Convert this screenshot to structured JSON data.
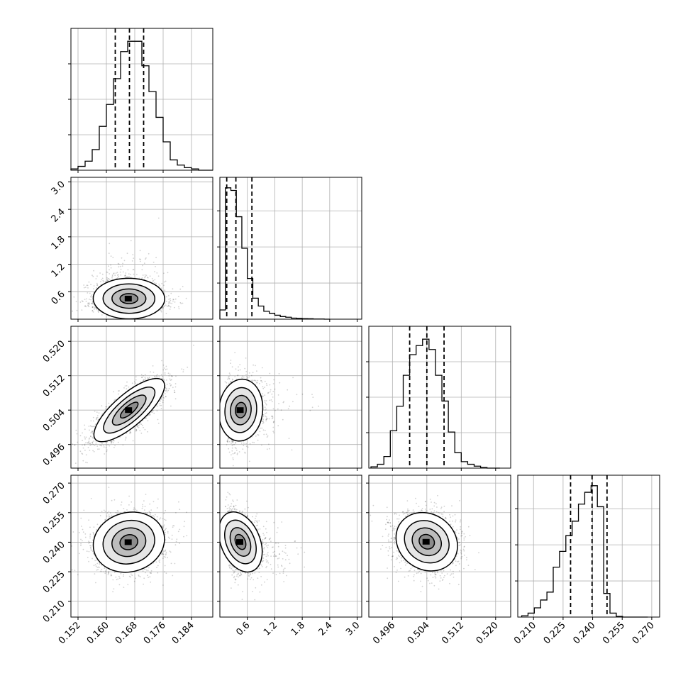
{
  "chart_data": {
    "type": "corner",
    "parameters": [
      {
        "range": [
          0.15,
          0.19
        ],
        "ticks": [
          0.152,
          0.16,
          0.168,
          0.176,
          0.184
        ],
        "tick_labels": [
          "0.152",
          "0.160",
          "0.168",
          "0.176",
          "0.184"
        ],
        "quantiles": [
          0.1625,
          0.1665,
          0.1705
        ],
        "hist_bins": [
          0.15,
          0.152,
          0.154,
          0.156,
          0.158,
          0.16,
          0.162,
          0.164,
          0.166,
          0.168,
          0.17,
          0.172,
          0.174,
          0.176,
          0.178,
          0.18,
          0.182,
          0.184,
          0.186,
          0.188,
          0.19
        ],
        "hist_counts": [
          0.01,
          0.03,
          0.07,
          0.16,
          0.34,
          0.51,
          0.71,
          0.92,
          1.0,
          1.0,
          0.81,
          0.61,
          0.41,
          0.22,
          0.08,
          0.04,
          0.02,
          0.01,
          0,
          0
        ],
        "hist_ylim": [
          0,
          1.1
        ]
      },
      {
        "range": [
          0.0,
          3.1
        ],
        "ticks": [
          0.6,
          1.2,
          1.8,
          2.4,
          3.0
        ],
        "tick_labels": [
          "0.6",
          "1.2",
          "1.8",
          "2.4",
          "3.0"
        ],
        "quantiles": [
          0.15,
          0.35,
          0.7
        ],
        "hist_bins": [
          0.0,
          0.12,
          0.24,
          0.36,
          0.48,
          0.6,
          0.72,
          0.84,
          0.96,
          1.08,
          1.2,
          1.32,
          1.44,
          1.56,
          1.68,
          1.8,
          1.92,
          2.04,
          2.16,
          2.28,
          2.4
        ],
        "hist_counts": [
          0.07,
          1.0,
          0.98,
          0.78,
          0.54,
          0.31,
          0.16,
          0.1,
          0.06,
          0.045,
          0.03,
          0.02,
          0.015,
          0.008,
          0.006,
          0.004,
          0.003,
          0.001,
          0.001,
          0
        ],
        "hist_ylim": [
          0,
          1.08
        ]
      },
      {
        "range": [
          0.4905,
          0.5235
        ],
        "ticks": [
          0.496,
          0.504,
          0.512,
          0.52
        ],
        "tick_labels": [
          "0.496",
          "0.504",
          "0.512",
          "0.520"
        ],
        "quantiles": [
          0.5,
          0.504,
          0.508
        ],
        "hist_bins": [
          0.491,
          0.4925,
          0.494,
          0.4955,
          0.497,
          0.4985,
          0.5,
          0.5015,
          0.503,
          0.5045,
          0.506,
          0.5075,
          0.509,
          0.5105,
          0.512,
          0.5135,
          0.515,
          0.5165,
          0.518,
          0.5195,
          0.521
        ],
        "hist_counts": [
          0.01,
          0.03,
          0.09,
          0.29,
          0.48,
          0.72,
          0.88,
          0.95,
          1.0,
          0.92,
          0.72,
          0.52,
          0.28,
          0.12,
          0.05,
          0.03,
          0.015,
          0.005,
          0,
          0
        ],
        "hist_ylim": [
          0,
          1.1
        ]
      },
      {
        "range": [
          0.202,
          0.274
        ],
        "ticks": [
          0.21,
          0.225,
          0.24,
          0.255,
          0.27
        ],
        "tick_labels": [
          "0.210",
          "0.225",
          "0.240",
          "0.255",
          "0.270"
        ],
        "quantiles": [
          0.2288,
          0.2397,
          0.2473
        ],
        "hist_bins": [
          0.204,
          0.2072,
          0.2104,
          0.2136,
          0.2168,
          0.22,
          0.2232,
          0.2264,
          0.2296,
          0.2328,
          0.236,
          0.2392,
          0.2424,
          0.2456,
          0.2488,
          0.252,
          0.2552,
          0.2584,
          0.2616,
          0.2648,
          0.268
        ],
        "hist_counts": [
          0.01,
          0.03,
          0.07,
          0.13,
          0.19,
          0.38,
          0.5,
          0.62,
          0.73,
          0.86,
          0.95,
          1.0,
          0.84,
          0.18,
          0.03,
          0.005,
          0,
          0,
          0,
          0
        ],
        "hist_ylim": [
          0,
          1.08
        ]
      }
    ],
    "scatter_pairs": [
      {
        "row": 1,
        "col": 0,
        "mean": [
          0.1665,
          0.4
        ],
        "sd": [
          0.005,
          0.38
        ],
        "corr": -0.05,
        "skew_y": 0.55
      },
      {
        "row": 2,
        "col": 0,
        "mean": [
          0.1665,
          0.504
        ],
        "sd": [
          0.005,
          0.0036
        ],
        "corr": 0.78,
        "skew_y": 0
      },
      {
        "row": 2,
        "col": 1,
        "mean": [
          0.4,
          0.504
        ],
        "sd": [
          0.38,
          0.0036
        ],
        "corr": 0.1,
        "skew_x": 0.55
      },
      {
        "row": 3,
        "col": 0,
        "mean": [
          0.1665,
          0.24
        ],
        "sd": [
          0.005,
          0.0075
        ],
        "corr": 0.1,
        "skew_y": 0
      },
      {
        "row": 3,
        "col": 1,
        "mean": [
          0.4,
          0.24
        ],
        "sd": [
          0.38,
          0.0075
        ],
        "corr": -0.35,
        "skew_x": 0.55
      },
      {
        "row": 3,
        "col": 2,
        "mean": [
          0.504,
          0.24
        ],
        "sd": [
          0.0036,
          0.0075
        ],
        "corr": -0.12,
        "skew_y": 0
      }
    ],
    "grid": true,
    "quantile_lines": "dashed"
  }
}
